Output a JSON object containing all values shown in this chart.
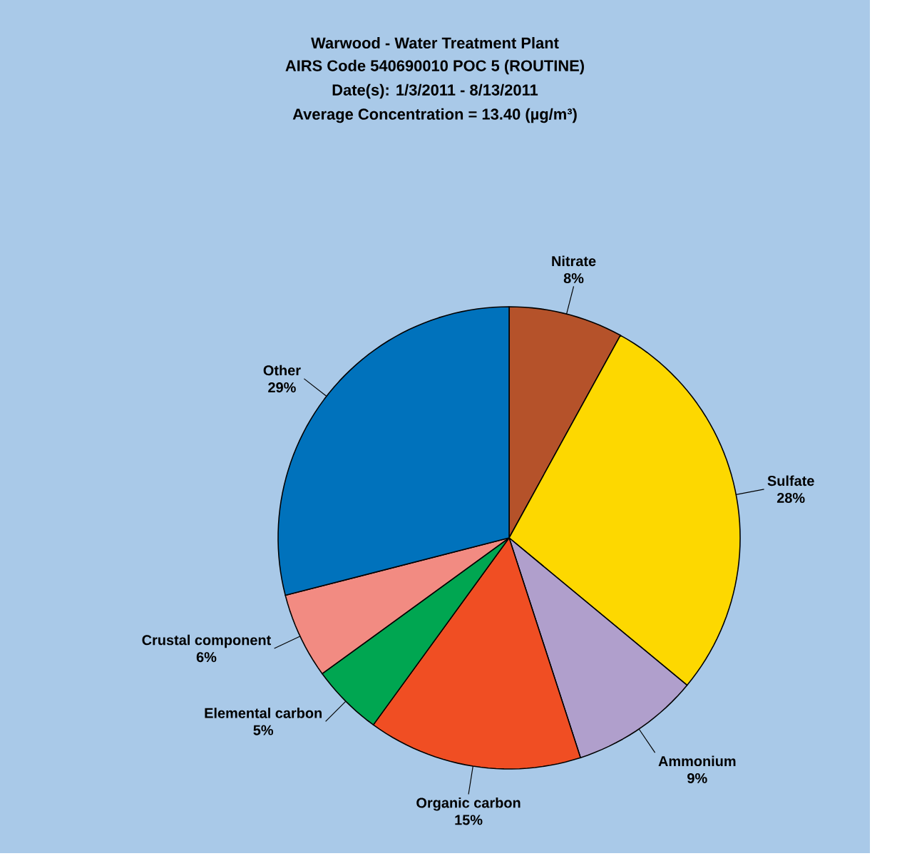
{
  "chart_data": {
    "type": "pie",
    "title": "Warwood - Water Treatment Plant",
    "subtitle": "AIRS Code 540690010 POC 5 (ROUTINE)",
    "annotations": [
      "Date(s):  1/3/2011 - 8/13/2011",
      "Average Concentration = 13.40 (µg/m³)"
    ],
    "categories": [
      "Nitrate",
      "Sulfate",
      "Ammonium",
      "Organic carbon",
      "Elemental carbon",
      "Crustal component",
      "Other"
    ],
    "values": [
      8,
      28,
      9,
      15,
      5,
      6,
      29
    ],
    "value_labels": [
      "8%",
      "28%",
      "9%",
      "15%",
      "5%",
      "6%",
      "29%"
    ],
    "colors": [
      "#b5522a",
      "#fdd800",
      "#b09fcc",
      "#f04e23",
      "#00a651",
      "#f28b82",
      "#0072bc"
    ]
  }
}
